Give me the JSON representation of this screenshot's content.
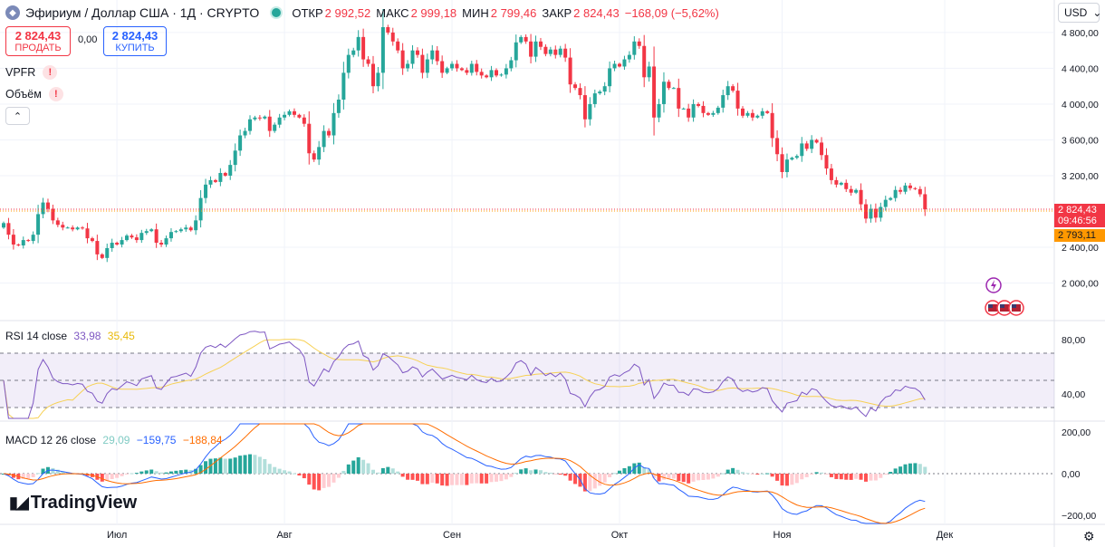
{
  "header": {
    "symbol_title": "Эфириум / Доллар США · 1Д · CRYPTO",
    "ohlc": [
      {
        "label": "ОТКР",
        "value": "2 992,52"
      },
      {
        "label": "МАКС",
        "value": "2 999,18"
      },
      {
        "label": "МИН",
        "value": "2 799,46"
      },
      {
        "label": "ЗАКР",
        "value": "2 824,43"
      }
    ],
    "change": "−168,09 (−5,62%)"
  },
  "trade": {
    "sell_price": "2 824,43",
    "sell_label": "ПРОДАТЬ",
    "spread": "0,00",
    "buy_price": "2 824,43",
    "buy_label": "КУПИТЬ"
  },
  "indicators": {
    "vpfr": "VPFR",
    "volume": "Объём",
    "warn_glyph": "!",
    "collapse_glyph": "⌃"
  },
  "currency": "USD",
  "tags": {
    "last_price": "2 824,43",
    "countdown": "09:46:56",
    "secondary_price": "2 793,11"
  },
  "logo": "TradingView",
  "colors": {
    "up": "#26a69a",
    "down": "#f23645",
    "rsi": "#7e57c2",
    "rsi_ma": "#f7d154",
    "macd": "#2962ff",
    "signal": "#ff6d00"
  },
  "chart_data": [
    {
      "type": "candlestick",
      "title": "Эфириум / Доллар США · 1Д · CRYPTO",
      "y_ticks": [
        "4 800,00",
        "4 400,00",
        "4 000,00",
        "3 600,00",
        "3 200,00",
        "2 400,00",
        "2 000,00"
      ],
      "y_tick_values": [
        4800,
        4400,
        4000,
        3600,
        3200,
        2400,
        2000
      ],
      "ylim": [
        1600,
        4860
      ],
      "x_ticks": [
        "Июл",
        "Авг",
        "Сен",
        "Окт",
        "Ноя",
        "Дек"
      ],
      "x_tick_index": [
        23,
        57,
        91,
        125,
        158,
        191
      ],
      "last_close": 2824.43,
      "close": [
        2670,
        2540,
        2430,
        2420,
        2480,
        2470,
        2540,
        2770,
        2900,
        2830,
        2700,
        2650,
        2620,
        2620,
        2600,
        2620,
        2610,
        2500,
        2470,
        2320,
        2280,
        2390,
        2450,
        2430,
        2480,
        2530,
        2510,
        2480,
        2560,
        2580,
        2600,
        2450,
        2430,
        2500,
        2570,
        2580,
        2600,
        2620,
        2590,
        2700,
        2950,
        3100,
        3150,
        3130,
        3230,
        3200,
        3320,
        3480,
        3650,
        3700,
        3830,
        3850,
        3840,
        3860,
        3700,
        3770,
        3850,
        3880,
        3920,
        3880,
        3850,
        3780,
        3450,
        3380,
        3520,
        3700,
        3650,
        3900,
        4050,
        4350,
        4550,
        4600,
        4750,
        4500,
        4450,
        4200,
        4350,
        4860,
        4800,
        4700,
        4600,
        4400,
        4450,
        4600,
        4550,
        4350,
        4500,
        4600,
        4480,
        4350,
        4400,
        4450,
        4400,
        4380,
        4350,
        4450,
        4360,
        4320,
        4300,
        4380,
        4320,
        4330,
        4400,
        4490,
        4690,
        4750,
        4700,
        4530,
        4700,
        4640,
        4560,
        4610,
        4550,
        4620,
        4520,
        4220,
        4180,
        4100,
        3830,
        4000,
        4120,
        4140,
        4200,
        4400,
        4450,
        4420,
        4500,
        4550,
        4700,
        4650,
        4300,
        4420,
        3850,
        4000,
        4250,
        4180,
        4180,
        3950,
        3950,
        3850,
        4000,
        3980,
        3900,
        3880,
        3900,
        3960,
        4100,
        4200,
        4150,
        3950,
        3870,
        3900,
        3850,
        3870,
        3920,
        3900,
        3620,
        3440,
        3240,
        3380,
        3400,
        3420,
        3560,
        3500,
        3600,
        3570,
        3430,
        3280,
        3150,
        3100,
        3120,
        3050,
        3010,
        3040,
        2880,
        2720,
        2830,
        2730,
        2850,
        2930,
        2950,
        3040,
        3020,
        3090,
        3060,
        3050,
        2992,
        2824
      ],
      "open": [
        2620,
        2670,
        2540,
        2430,
        2420,
        2480,
        2470,
        2540,
        2770,
        2900,
        2830,
        2700,
        2650,
        2620,
        2620,
        2600,
        2620,
        2610,
        2500,
        2470,
        2320,
        2280,
        2390,
        2450,
        2430,
        2480,
        2530,
        2510,
        2480,
        2560,
        2580,
        2600,
        2450,
        2430,
        2500,
        2570,
        2580,
        2600,
        2620,
        2590,
        2700,
        2950,
        3100,
        3150,
        3130,
        3230,
        3200,
        3320,
        3480,
        3650,
        3700,
        3830,
        3850,
        3840,
        3860,
        3700,
        3770,
        3850,
        3880,
        3920,
        3880,
        3850,
        3780,
        3450,
        3380,
        3520,
        3700,
        3650,
        3900,
        4050,
        4350,
        4550,
        4600,
        4750,
        4500,
        4450,
        4200,
        4350,
        4860,
        4800,
        4700,
        4600,
        4400,
        4450,
        4600,
        4550,
        4350,
        4500,
        4600,
        4480,
        4350,
        4400,
        4450,
        4400,
        4380,
        4350,
        4450,
        4360,
        4320,
        4300,
        4380,
        4320,
        4330,
        4400,
        4490,
        4690,
        4750,
        4700,
        4530,
        4700,
        4640,
        4560,
        4610,
        4550,
        4620,
        4520,
        4220,
        4180,
        4100,
        3830,
        4000,
        4120,
        4140,
        4200,
        4400,
        4450,
        4420,
        4500,
        4550,
        4700,
        4650,
        4300,
        4420,
        3850,
        4000,
        4250,
        4180,
        4180,
        3950,
        3950,
        3850,
        4000,
        3980,
        3900,
        3880,
        3900,
        3960,
        4100,
        4200,
        4150,
        3950,
        3870,
        3900,
        3850,
        3870,
        3920,
        3900,
        3620,
        3440,
        3240,
        3380,
        3400,
        3420,
        3560,
        3500,
        3600,
        3570,
        3430,
        3280,
        3150,
        3100,
        3120,
        3050,
        3010,
        3040,
        2880,
        2720,
        2830,
        2730,
        2850,
        2930,
        2950,
        3040,
        3020,
        3090,
        3060,
        3050,
        2992.52
      ]
    },
    {
      "type": "line",
      "title": "RSI 14 close",
      "series": [
        {
          "name": "RSI",
          "last": "33,98"
        },
        {
          "name": "RSI MA",
          "last": "35,45"
        }
      ],
      "y_ticks": [
        "80,00",
        "40,00"
      ],
      "y_tick_values": [
        80,
        40
      ],
      "bands": [
        70,
        50,
        30
      ],
      "ylim": [
        22,
        92
      ]
    },
    {
      "type": "line",
      "title": "MACD 12 26 close",
      "series": [
        {
          "name": "Histogram",
          "last": "29,09"
        },
        {
          "name": "MACD",
          "last": "−159,75"
        },
        {
          "name": "Signal",
          "last": "−188,84"
        }
      ],
      "y_ticks": [
        "200,00",
        "0,00",
        "−200,00"
      ],
      "y_tick_values": [
        200,
        0,
        -200
      ],
      "ylim": [
        -240,
        240
      ]
    }
  ]
}
